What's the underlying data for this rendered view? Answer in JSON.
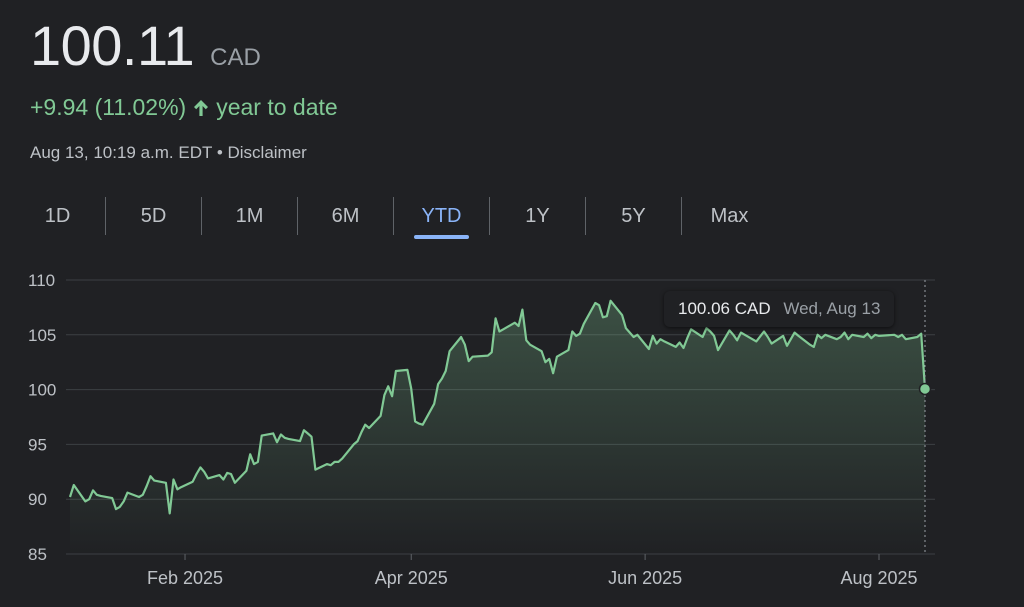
{
  "quote": {
    "price": "100.11",
    "currency": "CAD",
    "change": "+9.94 (11.02%)",
    "period": "year to date",
    "timestamp": "Aug 13, 10:19 a.m. EDT",
    "separator": "•",
    "disclaimer": "Disclaimer"
  },
  "tabs": [
    {
      "label": "1D",
      "active": false
    },
    {
      "label": "5D",
      "active": false
    },
    {
      "label": "1M",
      "active": false
    },
    {
      "label": "6M",
      "active": false
    },
    {
      "label": "YTD",
      "active": true
    },
    {
      "label": "1Y",
      "active": false
    },
    {
      "label": "5Y",
      "active": false
    },
    {
      "label": "Max",
      "active": false
    }
  ],
  "tooltip": {
    "price": "100.06 CAD",
    "date": "Wed, Aug 13"
  },
  "colors": {
    "positive": "#81c995",
    "accent": "#8ab4f8",
    "background": "#202124"
  },
  "chart_data": {
    "type": "area",
    "x_axis": "date",
    "xlim": [
      "2025-01-02",
      "2025-08-13"
    ],
    "ylim": [
      85,
      110
    ],
    "y_ticks": [
      85,
      90,
      95,
      100,
      105,
      110
    ],
    "x_ticks": [
      {
        "date": "2025-02-01",
        "label": "Feb 2025"
      },
      {
        "date": "2025-04-01",
        "label": "Apr 2025"
      },
      {
        "date": "2025-06-01",
        "label": "Jun 2025"
      },
      {
        "date": "2025-08-01",
        "label": "Aug 2025"
      }
    ],
    "grid": true,
    "points": [
      [
        "2025-01-02",
        90.2
      ],
      [
        "2025-01-03",
        91.3
      ],
      [
        "2025-01-06",
        89.8
      ],
      [
        "2025-01-07",
        90.0
      ],
      [
        "2025-01-08",
        90.8
      ],
      [
        "2025-01-09",
        90.4
      ],
      [
        "2025-01-10",
        90.3
      ],
      [
        "2025-01-13",
        90.1
      ],
      [
        "2025-01-14",
        89.1
      ],
      [
        "2025-01-15",
        89.3
      ],
      [
        "2025-01-16",
        89.8
      ],
      [
        "2025-01-17",
        90.6
      ],
      [
        "2025-01-20",
        90.2
      ],
      [
        "2025-01-21",
        90.4
      ],
      [
        "2025-01-22",
        91.2
      ],
      [
        "2025-01-23",
        92.1
      ],
      [
        "2025-01-24",
        91.7
      ],
      [
        "2025-01-27",
        91.5
      ],
      [
        "2025-01-28",
        88.7
      ],
      [
        "2025-01-29",
        91.8
      ],
      [
        "2025-01-30",
        90.9
      ],
      [
        "2025-01-31",
        91.1
      ],
      [
        "2025-02-03",
        91.6
      ],
      [
        "2025-02-04",
        92.3
      ],
      [
        "2025-02-05",
        92.9
      ],
      [
        "2025-02-06",
        92.5
      ],
      [
        "2025-02-07",
        91.9
      ],
      [
        "2025-02-10",
        92.2
      ],
      [
        "2025-02-11",
        91.8
      ],
      [
        "2025-02-12",
        92.4
      ],
      [
        "2025-02-13",
        92.3
      ],
      [
        "2025-02-14",
        91.5
      ],
      [
        "2025-02-17",
        92.6
      ],
      [
        "2025-02-18",
        94.1
      ],
      [
        "2025-02-19",
        93.2
      ],
      [
        "2025-02-20",
        93.4
      ],
      [
        "2025-02-21",
        95.8
      ],
      [
        "2025-02-24",
        96.0
      ],
      [
        "2025-02-25",
        95.2
      ],
      [
        "2025-02-26",
        95.9
      ],
      [
        "2025-02-27",
        95.6
      ],
      [
        "2025-02-28",
        95.5
      ],
      [
        "2025-03-03",
        95.3
      ],
      [
        "2025-03-04",
        96.3
      ],
      [
        "2025-03-05",
        96.0
      ],
      [
        "2025-03-06",
        95.7
      ],
      [
        "2025-03-07",
        92.7
      ],
      [
        "2025-03-10",
        93.2
      ],
      [
        "2025-03-11",
        93.1
      ],
      [
        "2025-03-12",
        93.4
      ],
      [
        "2025-03-13",
        93.4
      ],
      [
        "2025-03-14",
        93.7
      ],
      [
        "2025-03-17",
        95.0
      ],
      [
        "2025-03-18",
        95.3
      ],
      [
        "2025-03-19",
        96.1
      ],
      [
        "2025-03-20",
        96.8
      ],
      [
        "2025-03-21",
        96.5
      ],
      [
        "2025-03-24",
        97.6
      ],
      [
        "2025-03-25",
        99.5
      ],
      [
        "2025-03-26",
        100.3
      ],
      [
        "2025-03-27",
        99.4
      ],
      [
        "2025-03-28",
        101.7
      ],
      [
        "2025-03-31",
        101.8
      ],
      [
        "2025-04-01",
        100.1
      ],
      [
        "2025-04-02",
        97.1
      ],
      [
        "2025-04-03",
        96.9
      ],
      [
        "2025-04-04",
        96.8
      ],
      [
        "2025-04-07",
        98.7
      ],
      [
        "2025-04-08",
        100.5
      ],
      [
        "2025-04-09",
        101.0
      ],
      [
        "2025-04-10",
        101.7
      ],
      [
        "2025-04-11",
        103.5
      ],
      [
        "2025-04-14",
        104.8
      ],
      [
        "2025-04-15",
        104.1
      ],
      [
        "2025-04-16",
        102.6
      ],
      [
        "2025-04-17",
        103.0
      ],
      [
        "2025-04-21",
        103.1
      ],
      [
        "2025-04-22",
        103.4
      ],
      [
        "2025-04-23",
        106.5
      ],
      [
        "2025-04-24",
        105.3
      ],
      [
        "2025-04-25",
        105.5
      ],
      [
        "2025-04-28",
        106.1
      ],
      [
        "2025-04-29",
        105.8
      ],
      [
        "2025-04-30",
        107.3
      ],
      [
        "2025-05-01",
        104.5
      ],
      [
        "2025-05-02",
        104.1
      ],
      [
        "2025-05-05",
        103.5
      ],
      [
        "2025-05-06",
        102.5
      ],
      [
        "2025-05-07",
        102.8
      ],
      [
        "2025-05-08",
        101.5
      ],
      [
        "2025-05-09",
        103.0
      ],
      [
        "2025-05-12",
        103.6
      ],
      [
        "2025-05-13",
        105.3
      ],
      [
        "2025-05-14",
        104.9
      ],
      [
        "2025-05-15",
        105.1
      ],
      [
        "2025-05-16",
        106.0
      ],
      [
        "2025-05-19",
        107.9
      ],
      [
        "2025-05-20",
        107.7
      ],
      [
        "2025-05-21",
        106.6
      ],
      [
        "2025-05-22",
        106.7
      ],
      [
        "2025-05-23",
        108.1
      ],
      [
        "2025-05-26",
        106.8
      ],
      [
        "2025-05-27",
        105.6
      ],
      [
        "2025-05-28",
        105.2
      ],
      [
        "2025-05-29",
        104.8
      ],
      [
        "2025-05-30",
        105.0
      ],
      [
        "2025-06-02",
        103.7
      ],
      [
        "2025-06-03",
        104.9
      ],
      [
        "2025-06-04",
        104.2
      ],
      [
        "2025-06-05",
        104.6
      ],
      [
        "2025-06-06",
        104.4
      ],
      [
        "2025-06-09",
        103.9
      ],
      [
        "2025-06-10",
        104.3
      ],
      [
        "2025-06-11",
        103.8
      ],
      [
        "2025-06-12",
        104.7
      ],
      [
        "2025-06-13",
        105.5
      ],
      [
        "2025-06-16",
        104.8
      ],
      [
        "2025-06-17",
        105.6
      ],
      [
        "2025-06-18",
        105.3
      ],
      [
        "2025-06-19",
        104.9
      ],
      [
        "2025-06-20",
        103.6
      ],
      [
        "2025-06-23",
        105.4
      ],
      [
        "2025-06-24",
        105.0
      ],
      [
        "2025-06-25",
        104.5
      ],
      [
        "2025-06-26",
        105.2
      ],
      [
        "2025-06-27",
        105.0
      ],
      [
        "2025-06-30",
        104.4
      ],
      [
        "2025-07-02",
        105.3
      ],
      [
        "2025-07-03",
        104.8
      ],
      [
        "2025-07-04",
        104.2
      ],
      [
        "2025-07-07",
        104.9
      ],
      [
        "2025-07-08",
        104.0
      ],
      [
        "2025-07-09",
        104.6
      ],
      [
        "2025-07-10",
        105.2
      ],
      [
        "2025-07-11",
        104.9
      ],
      [
        "2025-07-14",
        104.1
      ],
      [
        "2025-07-15",
        103.9
      ],
      [
        "2025-07-16",
        105.0
      ],
      [
        "2025-07-17",
        104.7
      ],
      [
        "2025-07-18",
        105.0
      ],
      [
        "2025-07-21",
        104.6
      ],
      [
        "2025-07-22",
        104.8
      ],
      [
        "2025-07-23",
        105.2
      ],
      [
        "2025-07-24",
        104.6
      ],
      [
        "2025-07-25",
        105.0
      ],
      [
        "2025-07-28",
        104.8
      ],
      [
        "2025-07-29",
        105.1
      ],
      [
        "2025-07-30",
        104.7
      ],
      [
        "2025-07-31",
        105.0
      ],
      [
        "2025-08-01",
        104.9
      ],
      [
        "2025-08-05",
        105.0
      ],
      [
        "2025-08-06",
        104.8
      ],
      [
        "2025-08-07",
        105.0
      ],
      [
        "2025-08-08",
        104.6
      ],
      [
        "2025-08-11",
        104.8
      ],
      [
        "2025-08-12",
        105.1
      ],
      [
        "2025-08-13",
        100.06
      ]
    ],
    "highlight": {
      "date": "2025-08-13",
      "value": 100.06
    }
  }
}
